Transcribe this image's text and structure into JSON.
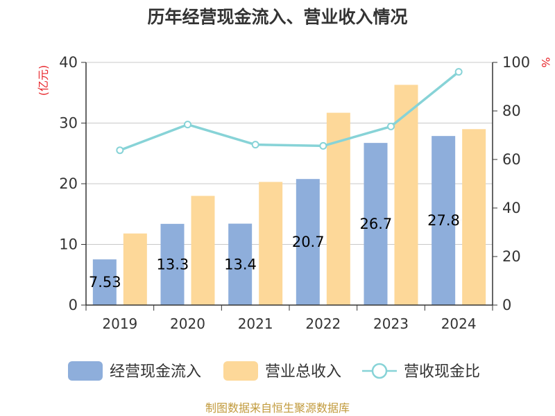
{
  "chart_data": {
    "type": "bar",
    "title": "历年经营现金流入、营业收入情况",
    "categories": [
      "2019",
      "2020",
      "2021",
      "2022",
      "2023",
      "2024"
    ],
    "y_left": {
      "unit_label": "(亿元)",
      "range": [
        0,
        40
      ],
      "ticks": [
        "0",
        "10",
        "20",
        "30",
        "40"
      ]
    },
    "y_right": {
      "unit_label": "%",
      "range": [
        0,
        100
      ],
      "ticks": [
        "0",
        "20",
        "40",
        "60",
        "80",
        "100"
      ]
    },
    "series": [
      {
        "name": "经营现金流入",
        "type": "bar",
        "axis": "left",
        "color": "#8eaedb",
        "values": [
          7.53,
          13.386,
          13.421,
          20.779,
          26.729,
          27.869
        ],
        "labels": [
          "7.53",
          "13.386",
          "13.421",
          "20.779",
          "26.729",
          "27.869"
        ]
      },
      {
        "name": "营业总收入",
        "type": "bar",
        "axis": "left",
        "color": "#fdd899",
        "values": [
          11.8,
          18.0,
          20.3,
          31.7,
          36.3,
          29.0
        ]
      },
      {
        "name": "营收现金比",
        "type": "line",
        "axis": "right",
        "color": "#87d3d7",
        "values": [
          63.8,
          74.4,
          66.1,
          65.6,
          73.6,
          96.1
        ]
      }
    ],
    "grid": true,
    "legend_position": "bottom"
  },
  "source": "制图数据来自恒生聚源数据库"
}
